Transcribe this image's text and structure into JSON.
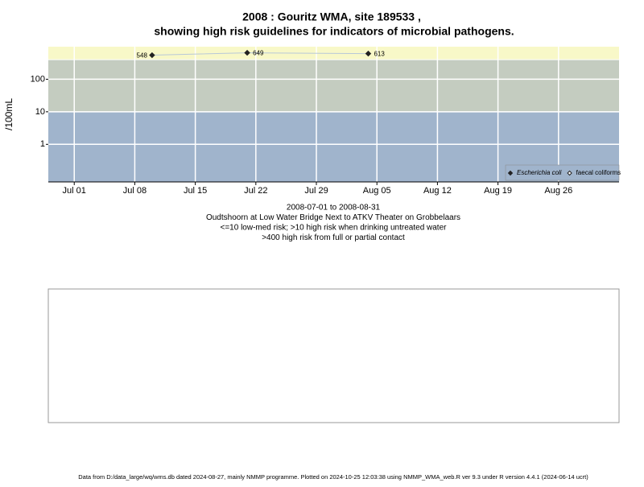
{
  "chart_data": {
    "type": "line",
    "title": [
      "2008 : Gouritz WMA, site 189533 ,",
      "showing high risk guidelines for indicators of microbial pathogens."
    ],
    "ylabel": "/100mL",
    "x": [
      "2008-07-10",
      "2008-07-21",
      "2008-08-04"
    ],
    "series": [
      {
        "name": "Escherichia coli",
        "color": "#222222",
        "marker": "filled-diamond",
        "values": [
          548,
          649,
          613
        ]
      },
      {
        "name": "faecal coliforms",
        "color": "#222222",
        "marker": "open-diamond",
        "values": [
          null,
          null,
          null
        ]
      }
    ],
    "line_color": "#b8c8d8",
    "log_scale": true,
    "ylim": [
      0.07,
      1000
    ],
    "yticks": [
      1,
      10,
      100
    ],
    "xlim": [
      "2008-06-28",
      "2008-09-02"
    ],
    "xticks": [
      {
        "value": "2008-07-01",
        "label": "Jul 01"
      },
      {
        "value": "2008-07-08",
        "label": "Jul 08"
      },
      {
        "value": "2008-07-15",
        "label": "Jul 15"
      },
      {
        "value": "2008-07-22",
        "label": "Jul 22"
      },
      {
        "value": "2008-07-29",
        "label": "Jul 29"
      },
      {
        "value": "2008-08-05",
        "label": "Aug 05"
      },
      {
        "value": "2008-08-12",
        "label": "Aug 12"
      },
      {
        "value": "2008-08-19",
        "label": "Aug 19"
      },
      {
        "value": "2008-08-26",
        "label": "Aug 26"
      }
    ],
    "guidelines": [
      10,
      400
    ],
    "band_colors": [
      "#a0b4cc",
      "#c4ccc0",
      "#f8f8c8"
    ],
    "grid": true,
    "legend": "bottom-right",
    "captions": [
      "2008-07-01 to 2008-08-31",
      "Oudtshoorn at Low Water Bridge Next to ATKV Theater on Grobbelaars",
      "<=10 low-med risk; >10 high risk when drinking untreated water",
      ">400 high risk from full or partial contact"
    ],
    "footer": "Data from D:/data_large/wq/wms.db dated 2024-08-27, mainly NMMP programme. Plotted on 2024-10-25 12:03:38 using NMMP_WMA_web.R ver 9.3 under R version 4.4.1 (2024-06-14 ucrt)"
  }
}
